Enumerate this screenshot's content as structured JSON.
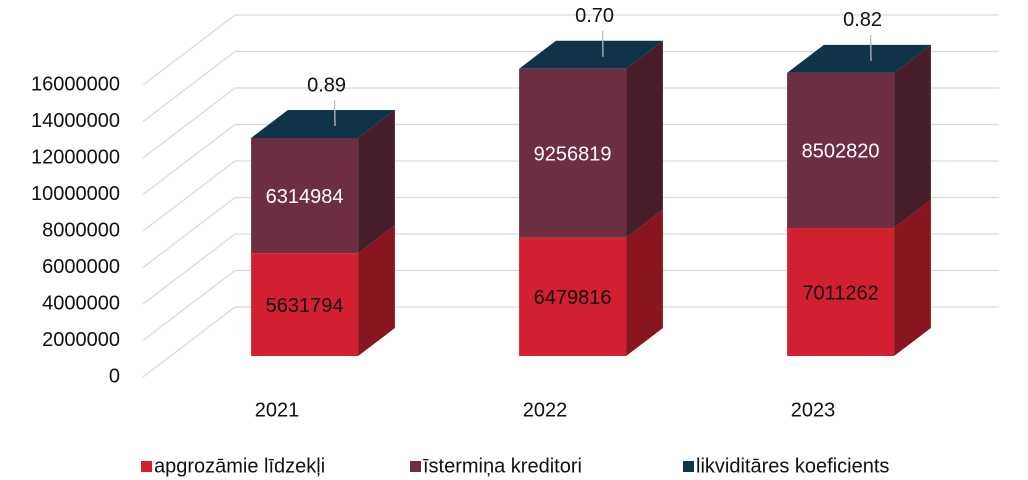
{
  "chart_data": {
    "type": "bar3d-stacked",
    "categories": [
      "2021",
      "2022",
      "2023"
    ],
    "series": [
      {
        "name": "apgrozāmie līdzekļi",
        "color": "#d32030",
        "values": [
          5631794,
          6479816,
          7011262
        ]
      },
      {
        "name": "īstermiņa kreditori",
        "color": "#6e2e42",
        "values": [
          6314984,
          9256819,
          8502820
        ]
      },
      {
        "name": "likviditāres koeficients",
        "color": "#0f3448",
        "values": [
          0.89,
          0.7,
          0.82
        ],
        "value_labels": [
          "0.89",
          "0.70",
          "0.82"
        ]
      }
    ],
    "ylim": [
      0,
      16000000
    ],
    "yticks": [
      0,
      2000000,
      4000000,
      6000000,
      8000000,
      10000000,
      12000000,
      14000000,
      16000000
    ],
    "grid": true,
    "legend": "bottom"
  }
}
